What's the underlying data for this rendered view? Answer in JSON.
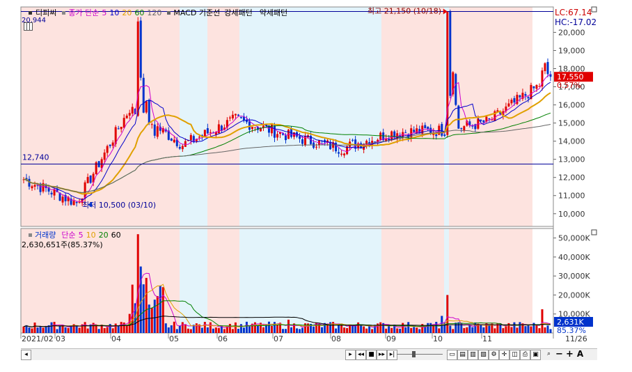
{
  "price_panel": {
    "legend": {
      "name": "디피씨",
      "ma_label": "종가 단순",
      "ma_periods": [
        "5",
        "10",
        "20",
        "60",
        "120"
      ],
      "ma_colors": [
        "#cc00cc",
        "#0000cc",
        "#e0a000",
        "#008000",
        "#666666"
      ],
      "extra_items": [
        "MACD 기준선",
        "강세패턴",
        "약세패턴"
      ]
    },
    "top_left_value": "20,944",
    "high_label": "최고 21,150 (10/18)",
    "low_label": "최저 10,500 (03/10)",
    "left_level_label": "12,740",
    "lc_label": "LC:67.14",
    "hc_label": "HC:-17.02",
    "current_price": "17,550",
    "current_change": "0.57%",
    "y_ticks": [
      "20,000",
      "19,000",
      "18,000",
      "17,000",
      "16,000",
      "15,000",
      "14,000",
      "13,000",
      "12,000",
      "11,000",
      "10,000"
    ]
  },
  "volume_panel": {
    "legend": {
      "name": "거래량",
      "ma_label": "단순",
      "ma_periods": [
        "5",
        "10",
        "20",
        "60"
      ],
      "ma_colors": [
        "#cc00cc",
        "#e0a000",
        "#008000",
        "#000000"
      ]
    },
    "volume_text": "2,630,651주(85.37%)",
    "current_volume": "2,631K",
    "current_pct": "85.37%",
    "y_ticks": [
      "50,000K",
      "40,000K",
      "30,000K",
      "20,000K",
      "10,000K"
    ]
  },
  "x_axis": {
    "labels": [
      "2021/02",
      "03",
      "04",
      "05",
      "06",
      "07",
      "08",
      "09",
      "10",
      "11"
    ],
    "right_label": "11/26"
  },
  "colors": {
    "up": "#e00000",
    "down": "#0033cc",
    "bull_bg": "#fde3df",
    "bear_bg": "#e3f4fb",
    "hline": "#000099"
  },
  "chart_data": {
    "type": "candlestick",
    "x": [
      "2021/02",
      "03",
      "04",
      "05",
      "06",
      "07",
      "08",
      "09",
      "10",
      "11",
      "11/26"
    ],
    "price_range": [
      9300,
      21400
    ],
    "price_high": 21150,
    "price_low": 10500,
    "price_last": 17550,
    "volume_range": [
      0,
      55000
    ],
    "volume_unit": "K",
    "monthly_close": [
      11900,
      10600,
      15800,
      13800,
      15200,
      14300,
      13600,
      14500,
      14600,
      15100,
      17550
    ],
    "grid": false,
    "legend_position": "top-left"
  },
  "toolbar": {
    "buttons": [
      "play-icon",
      "step-back-icon",
      "step-forward-icon",
      "stop-icon",
      "end-icon"
    ],
    "zoom_out": "−",
    "zoom_in": "+",
    "font_btn": "A"
  }
}
